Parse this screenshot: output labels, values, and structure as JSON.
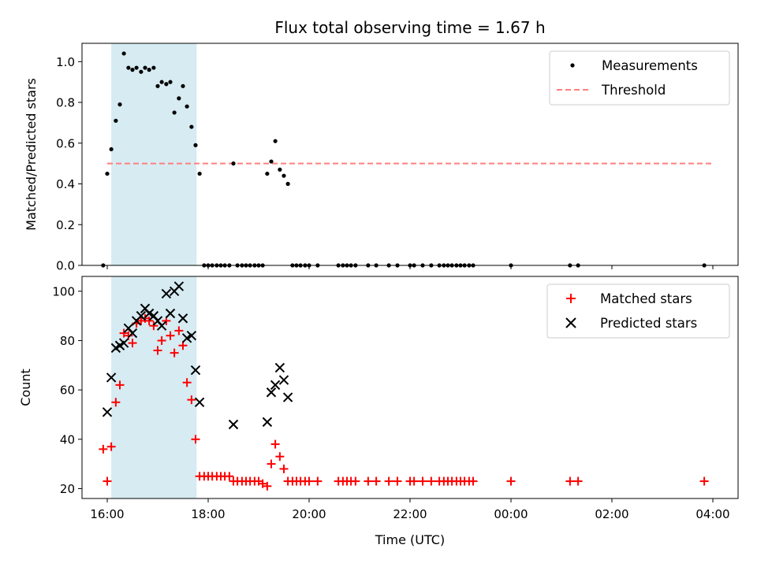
{
  "chart_data": {
    "title": "Flux total observing time = 1.67 h",
    "xlabel": "Time (UTC)",
    "x_ticks": [
      "16:00",
      "18:00",
      "20:00",
      "22:00",
      "00:00",
      "02:00",
      "04:00"
    ],
    "x_tick_hours": [
      16,
      18,
      20,
      22,
      24,
      26,
      28
    ],
    "xlim_hours": [
      15.5,
      28.5
    ],
    "observing_window_hours": [
      16.08,
      17.77
    ],
    "colors": {
      "measurement": "#000000",
      "threshold": "#ff7f7f",
      "matched": "#ff0000",
      "predicted": "#000000",
      "window": "#add8e6"
    },
    "panels": [
      {
        "type": "scatter",
        "ylabel": "Matched/Predicted stars",
        "ylim": [
          0,
          1.09
        ],
        "y_ticks": [
          "0.0",
          "0.2",
          "0.4",
          "0.6",
          "0.8",
          "1.0"
        ],
        "y_tick_values": [
          0,
          0.2,
          0.4,
          0.6,
          0.8,
          1.0
        ],
        "legend": {
          "placement": "upper right",
          "entries": [
            "Measurements",
            "Threshold"
          ]
        },
        "threshold": {
          "name": "Threshold",
          "value": 0.5,
          "x_range_hours": [
            16.0,
            28.0
          ]
        },
        "series": [
          {
            "name": "Measurements",
            "x_hours": [
              15.92,
              16.0,
              16.08,
              16.17,
              16.25,
              16.33,
              16.42,
              16.5,
              16.58,
              16.67,
              16.75,
              16.83,
              16.92,
              17.0,
              17.08,
              17.17,
              17.25,
              17.33,
              17.42,
              17.5,
              17.58,
              17.67,
              17.75,
              17.83,
              17.92,
              18.0,
              18.08,
              18.17,
              18.25,
              18.33,
              18.42,
              18.5,
              18.58,
              18.67,
              18.75,
              18.83,
              18.92,
              19.0,
              19.08,
              19.17,
              19.25,
              19.33,
              19.42,
              19.5,
              19.58,
              19.67,
              19.75,
              19.83,
              19.92,
              20.0,
              20.17,
              20.58,
              20.67,
              20.75,
              20.83,
              20.92,
              21.17,
              21.33,
              21.58,
              21.75,
              22.0,
              22.08,
              22.25,
              22.42,
              22.58,
              22.67,
              22.75,
              22.83,
              22.92,
              23.0,
              23.08,
              23.17,
              23.25,
              24.0,
              25.17,
              25.33,
              27.83
            ],
            "y": [
              0.0,
              0.45,
              0.57,
              0.71,
              0.79,
              1.04,
              0.97,
              0.96,
              0.97,
              0.95,
              0.97,
              0.96,
              0.97,
              0.88,
              0.9,
              0.89,
              0.9,
              0.75,
              0.82,
              0.88,
              0.78,
              0.68,
              0.59,
              0.45,
              0.0,
              0.0,
              0.0,
              0.0,
              0.0,
              0.0,
              0.0,
              0.5,
              0.0,
              0.0,
              0.0,
              0.0,
              0.0,
              0.0,
              0.0,
              0.45,
              0.51,
              0.61,
              0.47,
              0.44,
              0.4,
              0.0,
              0.0,
              0.0,
              0.0,
              0.0,
              0.0,
              0.0,
              0.0,
              0.0,
              0.0,
              0.0,
              0.0,
              0.0,
              0.0,
              0.0,
              0.0,
              0.0,
              0.0,
              0.0,
              0.0,
              0.0,
              0.0,
              0.0,
              0.0,
              0.0,
              0.0,
              0.0,
              0.0,
              0.0,
              0.0,
              0.0,
              0.0
            ]
          }
        ]
      },
      {
        "type": "scatter",
        "ylabel": "Count",
        "ylim": [
          16,
          106
        ],
        "y_ticks": [
          "20",
          "40",
          "60",
          "80",
          "100"
        ],
        "y_tick_values": [
          20,
          40,
          60,
          80,
          100
        ],
        "legend": {
          "placement": "upper right",
          "entries": [
            "Matched stars",
            "Predicted stars"
          ]
        },
        "series": [
          {
            "name": "Matched stars",
            "marker": "plus",
            "x_hours": [
              15.92,
              16.0,
              16.08,
              16.17,
              16.25,
              16.33,
              16.42,
              16.5,
              16.58,
              16.67,
              16.75,
              16.83,
              16.92,
              17.0,
              17.08,
              17.17,
              17.25,
              17.33,
              17.42,
              17.5,
              17.58,
              17.67,
              17.75,
              17.83,
              17.92,
              18.0,
              18.08,
              18.17,
              18.25,
              18.33,
              18.42,
              18.5,
              18.58,
              18.67,
              18.75,
              18.83,
              18.92,
              19.0,
              19.08,
              19.17,
              19.25,
              19.33,
              19.42,
              19.5,
              19.58,
              19.67,
              19.75,
              19.83,
              19.92,
              20.0,
              20.17,
              20.58,
              20.67,
              20.75,
              20.83,
              20.92,
              21.17,
              21.33,
              21.58,
              21.75,
              22.0,
              22.08,
              22.25,
              22.42,
              22.58,
              22.67,
              22.75,
              22.83,
              22.92,
              23.0,
              23.08,
              23.17,
              23.25,
              24.0,
              25.17,
              25.33,
              27.83
            ],
            "y": [
              36,
              23,
              37,
              55,
              62,
              83,
              82,
              79,
              87,
              88,
              89,
              88,
              86,
              76,
              80,
              88,
              82,
              75,
              84,
              78,
              63,
              56,
              40,
              25,
              25,
              25,
              25,
              25,
              25,
              25,
              25,
              23,
              23,
              23,
              23,
              23,
              23,
              23,
              22,
              21,
              30,
              38,
              33,
              28,
              23,
              23,
              23,
              23,
              23,
              23,
              23,
              23,
              23,
              23,
              23,
              23,
              23,
              23,
              23,
              23,
              23,
              23,
              23,
              23,
              23,
              23,
              23,
              23,
              23,
              23,
              23,
              23,
              23,
              23,
              23,
              23,
              23
            ]
          },
          {
            "name": "Predicted stars",
            "marker": "x",
            "x_hours": [
              16.0,
              16.08,
              16.17,
              16.25,
              16.33,
              16.42,
              16.5,
              16.58,
              16.67,
              16.75,
              16.83,
              16.92,
              17.0,
              17.08,
              17.17,
              17.25,
              17.33,
              17.42,
              17.5,
              17.58,
              17.67,
              17.75,
              17.83,
              18.5,
              19.17,
              19.25,
              19.33,
              19.42,
              19.5,
              19.58
            ],
            "y": [
              51,
              65,
              77,
              78,
              79,
              85,
              83,
              88,
              90,
              93,
              91,
              90,
              88,
              86,
              99,
              91,
              100,
              102,
              89,
              81,
              82,
              68,
              55,
              46,
              47,
              59,
              62,
              69,
              64,
              57
            ]
          }
        ]
      }
    ]
  }
}
